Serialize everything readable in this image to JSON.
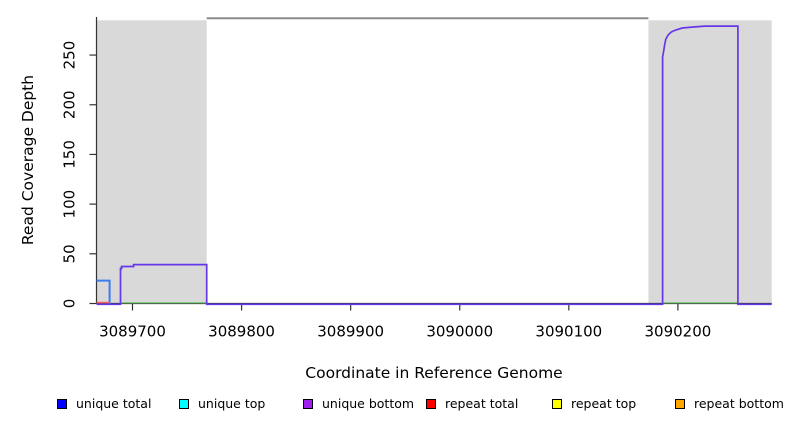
{
  "chart_data": {
    "type": "line",
    "title": "",
    "xlabel": "Coordinate in Reference Genome",
    "ylabel": "Read Coverage Depth",
    "xlim": [
      3089667,
      3090286
    ],
    "ylim": [
      0,
      287
    ],
    "x_ticks": [
      3089700,
      3089800,
      3089900,
      3090000,
      3090100,
      3090200
    ],
    "y_ticks": [
      0,
      50,
      100,
      150,
      200,
      250
    ],
    "grid": false,
    "legend_position": "bottom",
    "colors": {
      "axis": "#333333",
      "shaded_region": "#d9d9d9",
      "top_boundary_line": "#8c8c8c",
      "plot_background": "#ffffff"
    },
    "shaded_regions": [
      {
        "name": "repeat-region-left",
        "x0": 3089667,
        "x1": 3089768,
        "y0": 0,
        "y1": 285
      },
      {
        "name": "repeat-region-right",
        "x0": 3090173,
        "x1": 3090286,
        "y0": 0,
        "y1": 285
      }
    ],
    "top_boundary_segment": {
      "x0": 3089768,
      "x1": 3090173,
      "y": 287
    },
    "series": [
      {
        "name": "unique total",
        "color": "#0000ff",
        "display_color": "#3d7bf0",
        "segments": [
          [
            [
              3089667,
              23
            ],
            [
              3089679,
              23
            ],
            [
              3089679,
              0
            ]
          ]
        ]
      },
      {
        "name": "repeat total",
        "color": "#ff0000",
        "display_color": "#ff5c5c",
        "segments": [
          [
            [
              3089667,
              1
            ],
            [
              3089679,
              1
            ]
          ]
        ]
      },
      {
        "name": "green baseline segment",
        "color": "#7fcc7f",
        "display_color": "#7fcc7f",
        "segments": [
          [
            [
              3089690,
              0
            ],
            [
              3089768,
              0
            ]
          ],
          [
            [
              3090186,
              0
            ],
            [
              3090254,
              0
            ]
          ]
        ]
      },
      {
        "name": "unique bottom",
        "color": "#a020f0",
        "display_color": "#6438e8",
        "segments": [
          [
            [
              3089667,
              0
            ],
            [
              3089689,
              0
            ],
            [
              3089689,
              36
            ],
            [
              3089690,
              36
            ],
            [
              3089690,
              38
            ],
            [
              3089701,
              38
            ],
            [
              3089701,
              40
            ],
            [
              3089768,
              40
            ],
            [
              3089768,
              0
            ],
            [
              3090186,
              0
            ],
            [
              3090186,
              249
            ],
            [
              3090187,
              255
            ],
            [
              3090188,
              262
            ],
            [
              3090189,
              267
            ],
            [
              3090191,
              271
            ],
            [
              3090194,
              274
            ],
            [
              3090198,
              276
            ],
            [
              3090204,
              278
            ],
            [
              3090214,
              279
            ],
            [
              3090225,
              280
            ],
            [
              3090255,
              280
            ],
            [
              3090255,
              0
            ],
            [
              3090286,
              0
            ]
          ]
        ]
      }
    ],
    "legend": [
      {
        "label": "unique total",
        "color": "#0000ff"
      },
      {
        "label": "unique top",
        "color": "#00ffff"
      },
      {
        "label": "unique bottom",
        "color": "#a020f0"
      },
      {
        "label": "repeat total",
        "color": "#ff0000"
      },
      {
        "label": "repeat top",
        "color": "#ffff00"
      },
      {
        "label": "repeat bottom",
        "color": "#ffa500"
      }
    ]
  }
}
